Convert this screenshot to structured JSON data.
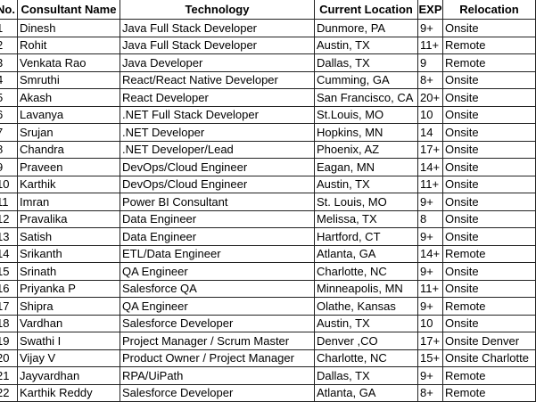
{
  "table": {
    "header": [
      "No.",
      "Consultant Name",
      "Technology",
      "Current Location",
      "EXP",
      "Relocation"
    ],
    "rows": [
      [
        1,
        "Dinesh",
        "Java Full Stack Developer",
        "Dunmore, PA",
        "9+",
        "Onsite"
      ],
      [
        2,
        "Rohit",
        "Java Full Stack Developer",
        "Austin, TX",
        "11+",
        "Remote"
      ],
      [
        3,
        "Venkata Rao",
        "Java Developer",
        "Dallas, TX",
        "9",
        "Remote"
      ],
      [
        4,
        "Smruthi",
        "React/React Native Developer",
        "Cumming, GA",
        "8+",
        "Onsite"
      ],
      [
        5,
        "Akash",
        "React Developer",
        "San Francisco, CA",
        "20+",
        "Onsite"
      ],
      [
        6,
        "Lavanya",
        ".NET Full Stack Developer",
        "St.Louis, MO",
        "10",
        "Onsite"
      ],
      [
        7,
        "Srujan",
        ".NET  Developer",
        "Hopkins, MN",
        "14",
        "Onsite"
      ],
      [
        8,
        "Chandra",
        ".NET  Developer/Lead",
        "Phoenix, AZ",
        "17+",
        "Onsite"
      ],
      [
        9,
        "Praveen",
        "DevOps/Cloud Engineer",
        "Eagan, MN",
        "14+",
        "Onsite"
      ],
      [
        10,
        "Karthik",
        "DevOps/Cloud Engineer",
        "Austin, TX",
        "11+",
        "Onsite"
      ],
      [
        11,
        "Imran",
        "Power BI Consultant",
        "St. Louis, MO",
        "9+",
        "Onsite"
      ],
      [
        12,
        "Pravalika",
        "Data Engineer",
        "Melissa, TX",
        "8",
        "Onsite"
      ],
      [
        13,
        "Satish",
        "Data Engineer",
        "Hartford, CT",
        "9+",
        "Onsite"
      ],
      [
        14,
        "Srikanth",
        "ETL/Data Engineer",
        "Atlanta, GA",
        "14+",
        "Remote"
      ],
      [
        15,
        "Srinath",
        "QA Engineer",
        "Charlotte, NC",
        "9+",
        "Onsite"
      ],
      [
        16,
        "Priyanka P",
        "Salesforce QA",
        "Minneapolis, MN",
        "11+",
        "Onsite"
      ],
      [
        17,
        "Shipra",
        "QA Engineer",
        "Olathe, Kansas",
        "9+",
        "Remote"
      ],
      [
        18,
        "Vardhan",
        "Salesforce Developer",
        "Austin, TX",
        "10",
        "Onsite"
      ],
      [
        19,
        "Swathi I",
        "Project Manager / Scrum Master",
        "Denver ,CO",
        "17+",
        "Onsite Denver"
      ],
      [
        20,
        "Vijay V",
        "Product Owner / Project Manager",
        "Charlotte, NC",
        "15+",
        "Onsite Charlotte"
      ],
      [
        21,
        "Jayvardhan",
        "RPA/UiPath",
        "Dallas, TX",
        "9+",
        "Remote"
      ],
      [
        22,
        "Karthik Reddy",
        "Salesforce Developer",
        "Atlanta, GA",
        "8+",
        "Remote"
      ]
    ]
  }
}
